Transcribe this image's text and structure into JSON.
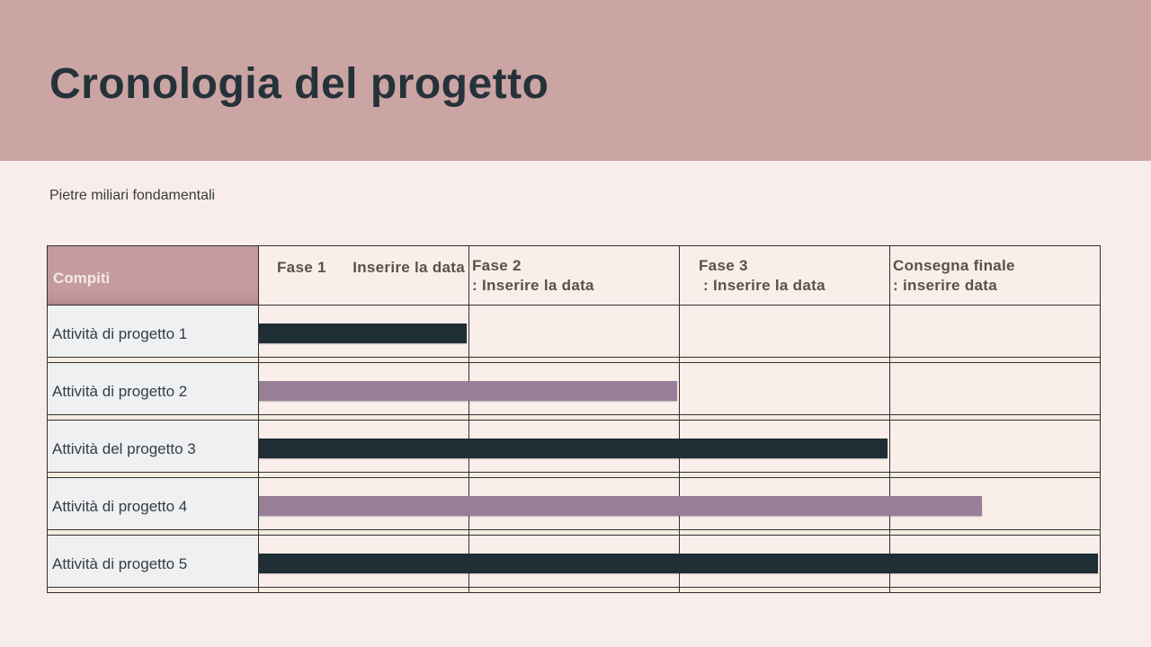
{
  "slide": {
    "title": "Cronologia del progetto",
    "subtitle": "Pietre miliari fondamentali"
  },
  "table": {
    "header": {
      "tasks_column": "Compiti",
      "phases": [
        {
          "line1": "Fase 1",
          "line2": "Inserire la data"
        },
        {
          "line1": "Fase 2",
          "line2": ": Inserire la data"
        },
        {
          "line1": "Fase 3",
          "line2": " : Inserire la data"
        },
        {
          "line1": "Consegna finale",
          "line2": ": inserire data"
        }
      ]
    }
  },
  "chart_data": {
    "type": "bar",
    "subtype": "gantt",
    "title": "Cronologia del progetto",
    "subtitle": "Pietre miliari fondamentali",
    "x_axis": {
      "units": "project phases",
      "labels": [
        "Fase 1 Inserire la data",
        "Fase 2 : Inserire la data",
        "Fase 3 : Inserire la data",
        "Consegna finale : inserire data"
      ],
      "range": [
        0,
        4
      ]
    },
    "grid": "table-borders",
    "legend_position": "none",
    "tasks": [
      {
        "label": "Attività di progetto 1",
        "start": 0,
        "end": 1,
        "color": "#1f2d35"
      },
      {
        "label": "Attività di progetto 2",
        "start": 0,
        "end": 2,
        "color": "#967f97"
      },
      {
        "label": "Attività del progetto 3",
        "start": 0,
        "end": 3,
        "color": "#1f2d35"
      },
      {
        "label": "Attività di progetto 4",
        "start": 0,
        "end": 3.45,
        "color": "#967f97"
      },
      {
        "label": "Attività di progetto 5",
        "start": 0,
        "end": 4,
        "color": "#1f2d35"
      }
    ]
  },
  "colors": {
    "banner": "#cba4a4",
    "slide_background": "#f8edea",
    "title_text": "#263239",
    "subtitle_text": "#3b3b3b",
    "compiti_header_bg": "#c49c9d",
    "compiti_header_text": "#f3eae4",
    "phase_header_bg": "#f9eeea",
    "phase_header_text": "#5a5147",
    "task_cell_bg": "#eff0f2",
    "task_text": "#353d42",
    "gantt_cell_bg": "#f9eeea",
    "spacer_row_bg": "#f3ede1",
    "bar_dark": "#1f2d35",
    "bar_mauve": "#967f97",
    "table_border": "#34302c"
  }
}
